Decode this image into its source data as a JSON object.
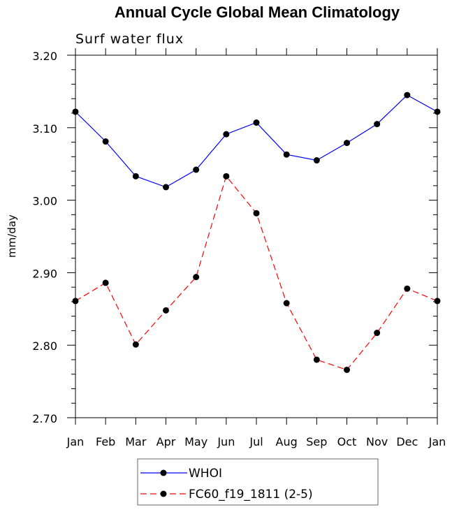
{
  "chart_data": {
    "type": "line",
    "title": "Annual Cycle Global Mean Climatology",
    "subtitle": "Surf water flux",
    "xlabel": "",
    "ylabel": "mm/day",
    "categories": [
      "Jan",
      "Feb",
      "Mar",
      "Apr",
      "May",
      "Jun",
      "Jul",
      "Aug",
      "Sep",
      "Oct",
      "Nov",
      "Dec",
      "Jan"
    ],
    "ylim": [
      2.7,
      3.2
    ],
    "yticks": [
      2.7,
      2.8,
      2.9,
      3.0,
      3.1,
      3.2
    ],
    "ytick_labels": [
      "2.70",
      "2.80",
      "2.90",
      "3.00",
      "3.10",
      "3.20"
    ],
    "series": [
      {
        "name": "WHOI",
        "color": "#0000ff",
        "dash": "solid",
        "values": [
          3.122,
          3.081,
          3.033,
          3.018,
          3.042,
          3.091,
          3.107,
          3.063,
          3.055,
          3.079,
          3.105,
          3.145,
          3.122
        ]
      },
      {
        "name": "FC60_f19_1811 (2-5)",
        "color": "#ff0000",
        "dash": "dashed",
        "values": [
          2.861,
          2.886,
          2.801,
          2.848,
          2.894,
          3.033,
          2.982,
          2.858,
          2.78,
          2.766,
          2.817,
          2.878,
          2.861
        ]
      }
    ]
  }
}
